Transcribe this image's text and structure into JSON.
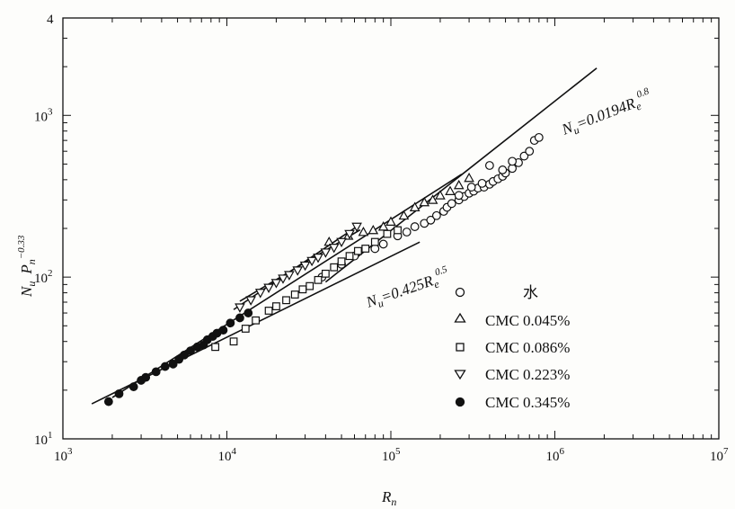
{
  "chart_data": {
    "type": "scatter",
    "xscale": "log",
    "yscale": "log",
    "xlim": [
      1000,
      10000000
    ],
    "ylim": [
      10,
      4000
    ],
    "x_tick_labels": [
      {
        "v": 1000,
        "base": "10",
        "exp": "3"
      },
      {
        "v": 10000,
        "base": "10",
        "exp": "4"
      },
      {
        "v": 100000,
        "base": "10",
        "exp": "5"
      },
      {
        "v": 1000000,
        "base": "10",
        "exp": "6"
      },
      {
        "v": 10000000,
        "base": "10",
        "exp": "7"
      }
    ],
    "y_tick_labels": [
      {
        "v": 10,
        "base": "10",
        "exp": "1"
      },
      {
        "v": 100,
        "base": "10",
        "exp": "2"
      },
      {
        "v": 1000,
        "base": "10",
        "exp": "3"
      },
      {
        "v": 4000,
        "base": "4",
        "exp": ""
      }
    ],
    "xlabel": {
      "main": "R",
      "sub": "n"
    },
    "ylabel": {
      "main1": "N",
      "sub1": "u",
      "main2": "P",
      "sub2": "n",
      "sup2": "−0.33"
    },
    "annotations": [
      {
        "main": "N",
        "sub": "u",
        "eq": "=0.0194R",
        "sub2": "e",
        "sup": "0.8"
      },
      {
        "main": "N",
        "sub": "u",
        "eq": "=0.425R",
        "sub2": "e",
        "sup": "0.5"
      }
    ],
    "lines": [
      {
        "name": "Nu=0.0194Re^0.8",
        "coef": 0.0194,
        "exp": 0.8,
        "x": [
          40000,
          1800000
        ]
      },
      {
        "name": "Nu=0.425Re^0.5",
        "coef": 0.425,
        "exp": 0.5,
        "x": [
          1500,
          150000
        ]
      },
      {
        "name": "non-newtonian-fit",
        "x": [
          11000,
          65000
        ],
        "y": [
          63,
          212
        ]
      },
      {
        "name": "lower-fit",
        "x": [
          12000,
          65000
        ],
        "y": [
          71,
          196
        ]
      },
      {
        "name": "cmc-fit-main",
        "x": [
          2000,
          270000
        ],
        "y": [
          18,
          432
        ]
      }
    ],
    "series": [
      {
        "name": "水",
        "marker": "circle-open",
        "points": [
          [
            38000,
            100
          ],
          [
            50000,
            120
          ],
          [
            60000,
            135
          ],
          [
            80000,
            150
          ],
          [
            90000,
            160
          ],
          [
            110000,
            180
          ],
          [
            125000,
            190
          ],
          [
            140000,
            205
          ],
          [
            160000,
            215
          ],
          [
            175000,
            225
          ],
          [
            190000,
            240
          ],
          [
            210000,
            255
          ],
          [
            220000,
            270
          ],
          [
            235000,
            285
          ],
          [
            260000,
            300
          ],
          [
            280000,
            315
          ],
          [
            300000,
            330
          ],
          [
            320000,
            340
          ],
          [
            340000,
            355
          ],
          [
            370000,
            360
          ],
          [
            400000,
            375
          ],
          [
            420000,
            390
          ],
          [
            450000,
            405
          ],
          [
            480000,
            420
          ],
          [
            500000,
            440
          ],
          [
            550000,
            470
          ],
          [
            600000,
            510
          ],
          [
            650000,
            560
          ],
          [
            700000,
            600
          ],
          [
            750000,
            700
          ],
          [
            800000,
            730
          ],
          [
            260000,
            320
          ],
          [
            310000,
            360
          ],
          [
            360000,
            380
          ],
          [
            400000,
            490
          ],
          [
            480000,
            460
          ],
          [
            550000,
            520
          ]
        ]
      },
      {
        "name": "CMC 0.045%",
        "marker": "triangle-up-open",
        "points": [
          [
            42000,
            165
          ],
          [
            55000,
            180
          ],
          [
            68000,
            190
          ],
          [
            78000,
            195
          ],
          [
            90000,
            205
          ],
          [
            100000,
            220
          ],
          [
            120000,
            240
          ],
          [
            140000,
            270
          ],
          [
            160000,
            290
          ],
          [
            180000,
            300
          ],
          [
            200000,
            320
          ],
          [
            230000,
            340
          ],
          [
            260000,
            370
          ],
          [
            300000,
            410
          ]
        ]
      },
      {
        "name": "CMC 0.086%",
        "marker": "square-open",
        "points": [
          [
            8500,
            37
          ],
          [
            11000,
            40
          ],
          [
            13000,
            48
          ],
          [
            15000,
            54
          ],
          [
            18000,
            62
          ],
          [
            20000,
            66
          ],
          [
            23000,
            72
          ],
          [
            26000,
            78
          ],
          [
            29000,
            84
          ],
          [
            32000,
            88
          ],
          [
            36000,
            96
          ],
          [
            40000,
            105
          ],
          [
            45000,
            115
          ],
          [
            50000,
            125
          ],
          [
            56000,
            135
          ],
          [
            63000,
            145
          ],
          [
            70000,
            150
          ],
          [
            80000,
            165
          ],
          [
            95000,
            185
          ],
          [
            110000,
            195
          ]
        ]
      },
      {
        "name": "CMC 0.223%",
        "marker": "triangle-down-open",
        "points": [
          [
            12000,
            65
          ],
          [
            14000,
            72
          ],
          [
            16000,
            80
          ],
          [
            18000,
            86
          ],
          [
            20000,
            92
          ],
          [
            22000,
            98
          ],
          [
            24000,
            103
          ],
          [
            27000,
            110
          ],
          [
            30000,
            118
          ],
          [
            33000,
            126
          ],
          [
            36000,
            132
          ],
          [
            40000,
            142
          ],
          [
            45000,
            152
          ],
          [
            50000,
            165
          ],
          [
            56000,
            185
          ],
          [
            62000,
            205
          ]
        ]
      },
      {
        "name": "CMC 0.345%",
        "marker": "circle-filled",
        "points": [
          [
            1900,
            17
          ],
          [
            2200,
            19
          ],
          [
            2700,
            21
          ],
          [
            3000,
            23
          ],
          [
            3200,
            24
          ],
          [
            3700,
            26
          ],
          [
            4200,
            28
          ],
          [
            4700,
            29
          ],
          [
            5100,
            31
          ],
          [
            5500,
            33
          ],
          [
            6000,
            35
          ],
          [
            6600,
            37
          ],
          [
            7200,
            38
          ],
          [
            7600,
            41
          ],
          [
            8200,
            43
          ],
          [
            8700,
            45
          ],
          [
            9500,
            47
          ],
          [
            10500,
            52
          ],
          [
            12000,
            56
          ],
          [
            13500,
            60
          ]
        ]
      }
    ],
    "legend": {
      "placement": "right",
      "items": [
        {
          "marker": "circle-open",
          "label": "水"
        },
        {
          "marker": "triangle-up-open",
          "label": "CMC 0.045%"
        },
        {
          "marker": "square-open",
          "label": "CMC 0.086%"
        },
        {
          "marker": "triangle-down-open",
          "label": "CMC 0.223%"
        },
        {
          "marker": "circle-filled",
          "label": "CMC 0.345%"
        }
      ]
    },
    "grid": false
  }
}
